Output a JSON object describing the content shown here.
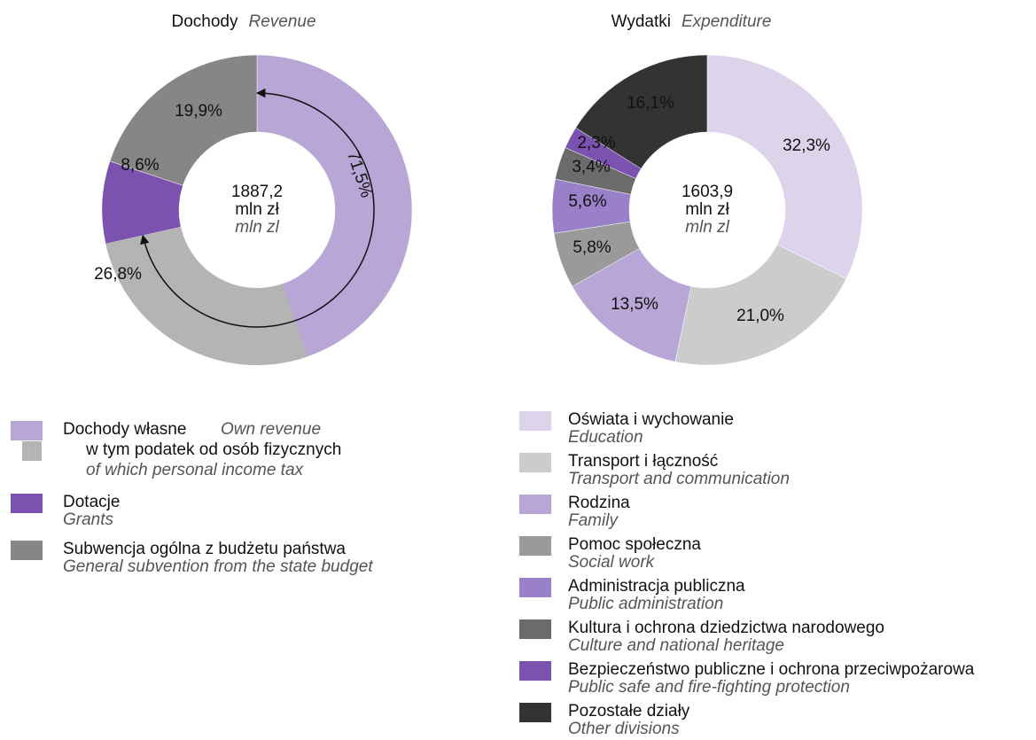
{
  "chart_data": [
    {
      "type": "donut",
      "title": "Dochody",
      "title_en": "Revenue",
      "center": [
        "1887,2",
        "mln zł",
        "mln zl"
      ],
      "categories": [
        "Dochody własne",
        "Dotacje",
        "Subwencja ogólna z budżetu państwa"
      ],
      "categories_en": [
        "Own revenue",
        "Grants",
        "General subvention from the state budget"
      ],
      "values": [
        71.5,
        8.6,
        19.9
      ],
      "value_labels": [
        "71,5%",
        "8,6%",
        "19,9%"
      ],
      "colors": [
        "#b8a6d6",
        "#7b52b0",
        "#868686"
      ],
      "subsegment": {
        "name": "w tym podatek od osób fizycznych",
        "name_en": "of which personal income tax",
        "value": 26.8,
        "value_label": "26,8%",
        "color": "#b4b4b4"
      }
    },
    {
      "type": "donut",
      "title": "Wydatki",
      "title_en": "Expenditure",
      "center": [
        "1603,9",
        "mln zł",
        "mln zl"
      ],
      "categories": [
        "Oświata i wychowanie",
        "Transport i łączność",
        "Rodzina",
        "Pomoc społeczna",
        "Administracja publiczna",
        "Kultura i ochrona dziedzictwa narodowego",
        "Bezpieczeństwo publiczne i ochrona przeciwpożarowa",
        "Pozostałe działy"
      ],
      "categories_en": [
        "Education",
        "Transport and communication",
        "Family",
        "Social work",
        "Public administration",
        "Culture and national heritage",
        "Public safe and fire-fighting protection",
        "Other divisions"
      ],
      "values": [
        32.3,
        21.0,
        13.5,
        5.8,
        5.6,
        3.4,
        2.3,
        16.1
      ],
      "value_labels": [
        "32,3%",
        "21,0%",
        "13,5%",
        "5,8%",
        "5,6%",
        "3,4%",
        "2,3%",
        "16,1%"
      ],
      "colors": [
        "#ddd4ec",
        "#cccccc",
        "#b8a6d6",
        "#9a9a9a",
        "#9a80c8",
        "#6b6b6b",
        "#7b52b0",
        "#333333"
      ]
    }
  ]
}
